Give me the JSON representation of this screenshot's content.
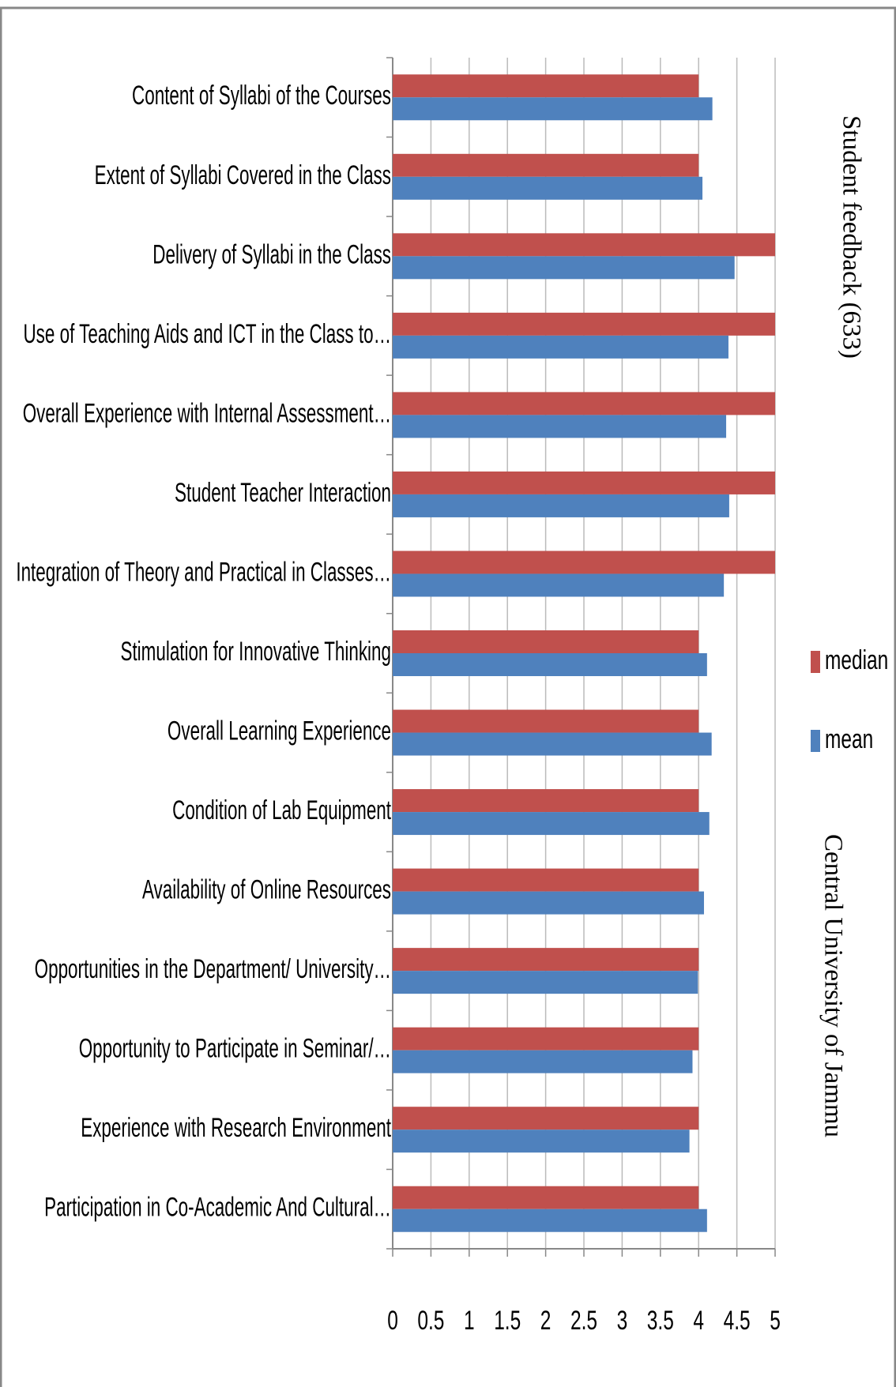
{
  "chart_data": {
    "type": "bar",
    "orientation": "horizontal",
    "title": "Student feedback (633)",
    "subtitle": "Central University of Jammu",
    "categories": [
      "Content of Syllabi of the Courses",
      "Extent of Syllabi Covered in the Class",
      "Delivery of Syllabi in the Class",
      "Use of Teaching Aids and ICT in the Class to…",
      "Overall Experience with Internal Assessment…",
      "Student Teacher Interaction",
      "Integration of Theory and Practical in Classes…",
      "Stimulation for Innovative Thinking",
      "Overall Learning Experience",
      "Condition of Lab Equipment",
      "Availability of Online Resources",
      "Opportunities in the Department/ University…",
      "Opportunity to Participate in Seminar/…",
      "Experience with Research Environment",
      "Participation in Co-Academic And Cultural…"
    ],
    "series": [
      {
        "name": "median",
        "color": "#c0504d",
        "values": [
          4,
          4,
          5,
          5,
          5,
          5,
          5,
          4,
          4,
          4,
          4,
          4,
          4,
          4,
          4
        ]
      },
      {
        "name": "mean",
        "color": "#4f81bd",
        "values": [
          4.18,
          4.05,
          4.47,
          4.39,
          4.36,
          4.4,
          4.33,
          4.11,
          4.17,
          4.14,
          4.07,
          3.99,
          3.92,
          3.88,
          4.11
        ]
      }
    ],
    "xlim": [
      0,
      5
    ],
    "xticks": [
      0,
      0.5,
      1,
      1.5,
      2,
      2.5,
      3,
      3.5,
      4,
      4.5,
      5
    ],
    "grid": true,
    "legend": "right"
  }
}
